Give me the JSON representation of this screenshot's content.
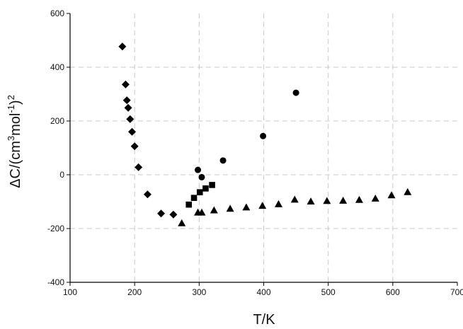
{
  "chart_data": {
    "type": "scatter",
    "title": "",
    "xlabel": "T/K",
    "ylabel": "ΔC/(cm³mol⁻¹)²",
    "ylabel_parts": {
      "base": "ΔC/(cm",
      "sup1": "3",
      "mid": "mol",
      "sup2": "-1",
      "close": ")",
      "sup3": "2"
    },
    "xlim": [
      100,
      700
    ],
    "ylim": [
      -400,
      600
    ],
    "x_ticks": [
      100,
      200,
      300,
      400,
      500,
      600,
      700
    ],
    "y_ticks": [
      -400,
      -200,
      0,
      200,
      400,
      600
    ],
    "grid": true,
    "grid_style": "dashed",
    "marker_color": "#000000",
    "grid_color": "#c8c8c8",
    "series": [
      {
        "marker": "diamond",
        "points": [
          [
            181,
            477
          ],
          [
            186,
            336
          ],
          [
            188,
            277
          ],
          [
            190,
            249
          ],
          [
            193,
            207
          ],
          [
            196,
            160
          ],
          [
            200,
            106
          ],
          [
            206,
            28
          ],
          [
            220,
            -73
          ],
          [
            241,
            -144
          ],
          [
            260,
            -148
          ]
        ]
      },
      {
        "marker": "square",
        "points": [
          [
            284,
            -111
          ],
          [
            292,
            -86
          ],
          [
            301,
            -65
          ],
          [
            310,
            -51
          ],
          [
            320,
            -38
          ]
        ]
      },
      {
        "marker": "circle",
        "points": [
          [
            298,
            18
          ],
          [
            304,
            -9
          ],
          [
            337,
            53
          ],
          [
            399,
            144
          ],
          [
            450,
            305
          ]
        ]
      },
      {
        "marker": "triangle",
        "points": [
          [
            273,
            -180
          ],
          [
            298,
            -140
          ],
          [
            304,
            -140
          ],
          [
            323,
            -132
          ],
          [
            348,
            -126
          ],
          [
            373,
            -121
          ],
          [
            398,
            -115
          ],
          [
            423,
            -109
          ],
          [
            448,
            -92
          ],
          [
            473,
            -99
          ],
          [
            498,
            -97
          ],
          [
            523,
            -96
          ],
          [
            548,
            -93
          ],
          [
            573,
            -88
          ],
          [
            598,
            -76
          ],
          [
            623,
            -64
          ]
        ]
      }
    ]
  }
}
